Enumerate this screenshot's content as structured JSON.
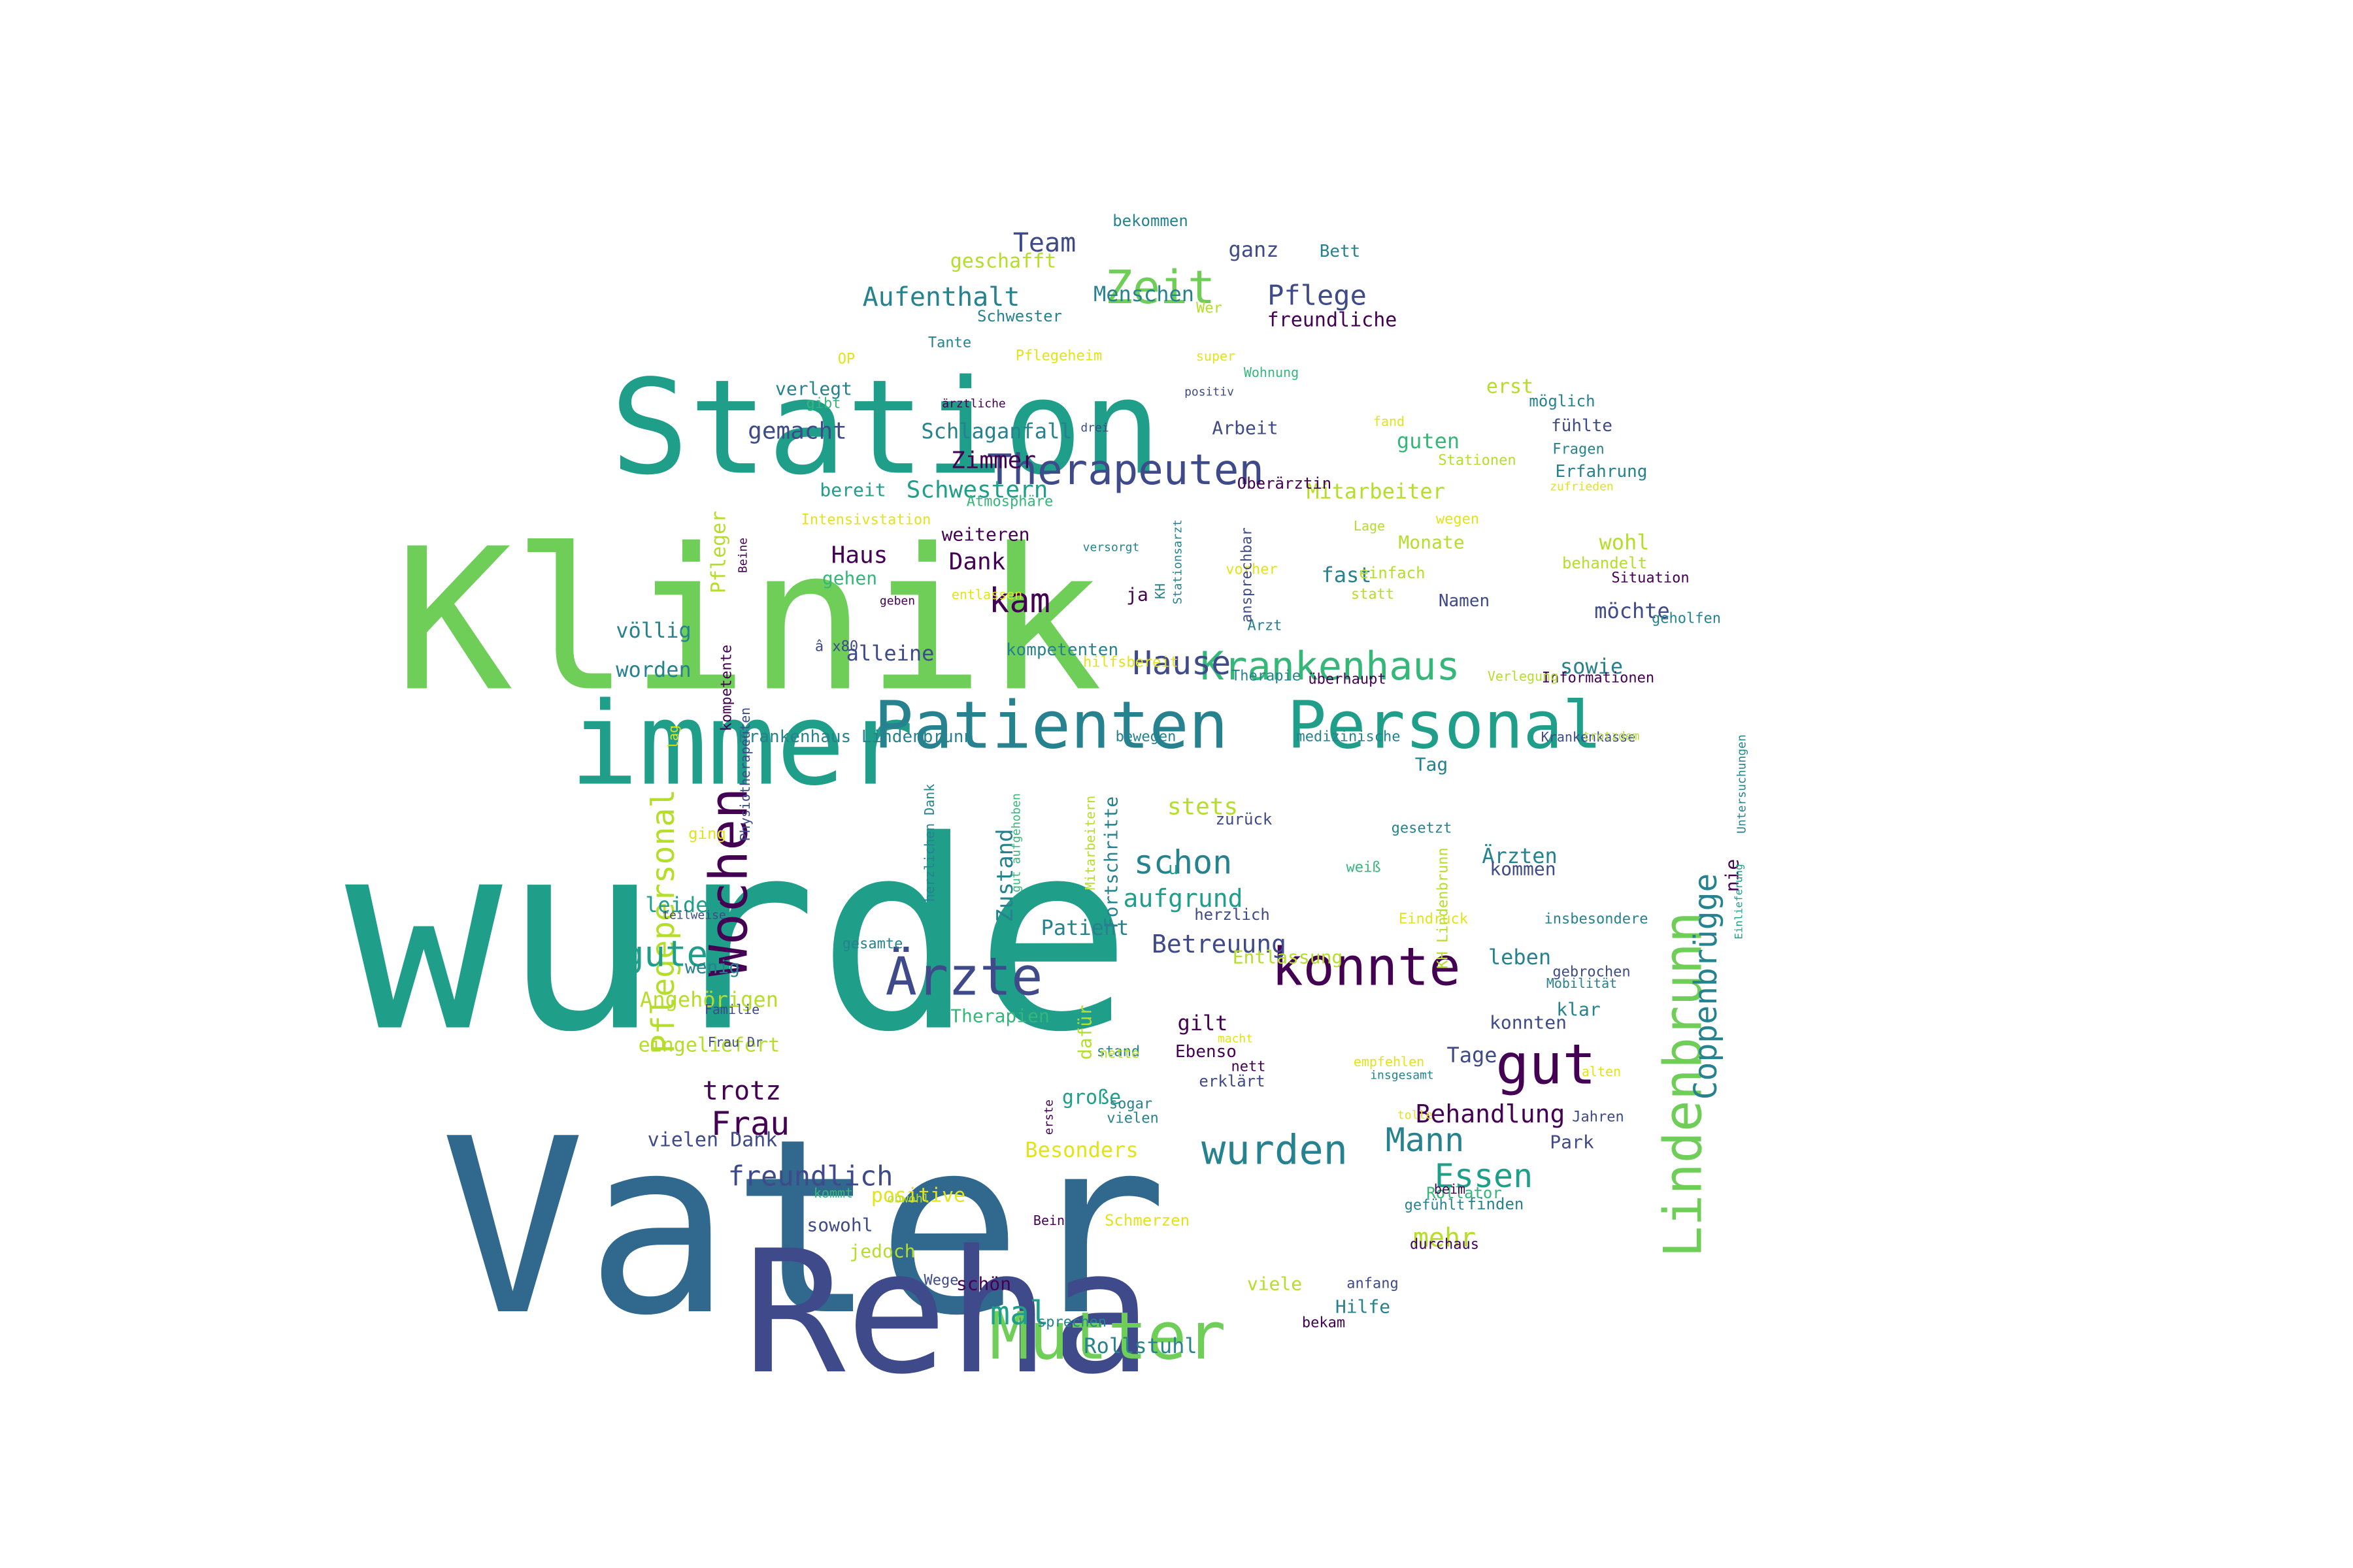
{
  "palette": {
    "dark_purple": "#440154",
    "indigo": "#3e4a89",
    "blue": "#31688e",
    "teal": "#26828e",
    "sea": "#1f9e89",
    "green": "#35b779",
    "lime": "#6ece58",
    "yellow_green": "#b5de2b",
    "yellow": "#e2e418"
  },
  "words": [
    {
      "text": "wurde",
      "size": 1,
      "color": "sea"
    },
    {
      "text": "Vater",
      "size": 0.9,
      "color": "blue"
    },
    {
      "text": "Klinik",
      "size": 0.76,
      "color": "lime"
    },
    {
      "text": "Reha",
      "size": 0.66,
      "color": "indigo"
    },
    {
      "text": "Station",
      "size": 0.5,
      "color": "sea"
    },
    {
      "text": "immer",
      "size": 0.44,
      "color": "sea"
    },
    {
      "text": "Patienten",
      "size": 0.3,
      "color": "teal"
    },
    {
      "text": "Personal",
      "size": 0.3,
      "color": "sea"
    },
    {
      "text": "Mutter",
      "size": 0.26,
      "color": "lime"
    },
    {
      "text": "Ärzte",
      "size": 0.24,
      "color": "indigo"
    },
    {
      "text": "gut",
      "size": 0.24,
      "color": "dark_purple"
    },
    {
      "text": "Lindenbrunn",
      "size": 0.22,
      "color": "lime"
    },
    {
      "text": "Zeit",
      "size": 0.2,
      "color": "lime"
    },
    {
      "text": "konnte",
      "size": 0.2,
      "color": "dark_purple"
    },
    {
      "text": "Wochen",
      "size": 0.2,
      "color": "dark_purple"
    },
    {
      "text": "Therapeuten",
      "size": 0.16,
      "color": "indigo"
    },
    {
      "text": "Krankenhaus",
      "size": 0.16,
      "color": "green"
    },
    {
      "text": "Pflegepersonal",
      "size": 0.14,
      "color": "yellow_green"
    },
    {
      "text": "Coppenbrügge",
      "size": 0.14,
      "color": "teal"
    },
    {
      "text": "wurden",
      "size": 0.14,
      "color": "teal"
    },
    {
      "text": "Hause",
      "size": 0.12,
      "color": "indigo"
    },
    {
      "text": "schon",
      "size": 0.12,
      "color": "teal"
    },
    {
      "text": "kam",
      "size": 0.12,
      "color": "dark_purple"
    },
    {
      "text": "gute",
      "size": 0.12,
      "color": "sea"
    },
    {
      "text": "Mann",
      "size": 0.12,
      "color": "teal"
    },
    {
      "text": "Essen",
      "size": 0.12,
      "color": "sea"
    },
    {
      "text": "Frau",
      "size": 0.12,
      "color": "dark_purple"
    },
    {
      "text": "mal",
      "size": 0.12,
      "color": "sea"
    },
    {
      "text": "Aufenthalt",
      "size": 0.1,
      "color": "teal"
    },
    {
      "text": "Pflege",
      "size": 0.1,
      "color": "indigo"
    },
    {
      "text": "Team",
      "size": 0.1,
      "color": "indigo"
    },
    {
      "text": "freundlich",
      "size": 0.1,
      "color": "indigo"
    },
    {
      "text": "trotz",
      "size": 0.1,
      "color": "dark_purple"
    },
    {
      "text": "Behandlung",
      "size": 0.1,
      "color": "dark_purple"
    },
    {
      "text": "Betreuung",
      "size": 0.1,
      "color": "indigo"
    },
    {
      "text": "aufgrund",
      "size": 0.1,
      "color": "sea"
    },
    {
      "text": "mehr",
      "size": 0.1,
      "color": "yellow_green"
    },
    {
      "text": "Schwestern",
      "size": 0.09,
      "color": "sea"
    },
    {
      "text": "gemacht",
      "size": 0.09,
      "color": "indigo"
    },
    {
      "text": "Zimmer",
      "size": 0.09,
      "color": "dark_purple"
    },
    {
      "text": "Dank",
      "size": 0.09,
      "color": "dark_purple"
    },
    {
      "text": "Haus",
      "size": 0.09,
      "color": "dark_purple"
    },
    {
      "text": "Zustand",
      "size": 0.09,
      "color": "teal"
    },
    {
      "text": "stets",
      "size": 0.09,
      "color": "yellow_green"
    },
    {
      "text": "Schlaganfall",
      "size": 0.08,
      "color": "teal"
    },
    {
      "text": "Menschen",
      "size": 0.08,
      "color": "teal"
    },
    {
      "text": "ganz",
      "size": 0.08,
      "color": "indigo"
    },
    {
      "text": "geschafft",
      "size": 0.08,
      "color": "yellow_green"
    },
    {
      "text": "Arbeit",
      "size": 0.07,
      "color": "indigo"
    },
    {
      "text": "freundliche",
      "size": 0.07,
      "color": "dark_purple"
    },
    {
      "text": "Mitarbeiter",
      "size": 0.07,
      "color": "yellow_green"
    },
    {
      "text": "guten",
      "size": 0.08,
      "color": "green"
    },
    {
      "text": "wohl",
      "size": 0.08,
      "color": "yellow_green"
    },
    {
      "text": "fast",
      "size": 0.08,
      "color": "teal"
    },
    {
      "text": "möchte",
      "size": 0.08,
      "color": "indigo"
    },
    {
      "text": "völlig",
      "size": 0.08,
      "color": "teal"
    },
    {
      "text": "alleine",
      "size": 0.08,
      "color": "indigo"
    },
    {
      "text": "worden",
      "size": 0.08,
      "color": "teal"
    },
    {
      "text": "sowie",
      "size": 0.08,
      "color": "teal"
    },
    {
      "text": "Pfleger",
      "size": 0.07,
      "color": "yellow_green"
    },
    {
      "text": "leider",
      "size": 0.07,
      "color": "sea"
    },
    {
      "text": "Angehörigen",
      "size": 0.07,
      "color": "yellow_green"
    },
    {
      "text": "eingeliefert",
      "size": 0.07,
      "color": "yellow_green"
    },
    {
      "text": "vielen Dank",
      "size": 0.07,
      "color": "indigo"
    },
    {
      "text": "Patient",
      "size": 0.07,
      "color": "teal"
    },
    {
      "text": "leben",
      "size": 0.07,
      "color": "teal"
    },
    {
      "text": "Ärzten",
      "size": 0.07,
      "color": "teal"
    },
    {
      "text": "Tage",
      "size": 0.07,
      "color": "indigo"
    },
    {
      "text": "gilt",
      "size": 0.07,
      "color": "dark_purple"
    },
    {
      "text": "große",
      "size": 0.07,
      "color": "sea"
    },
    {
      "text": "Besonders",
      "size": 0.07,
      "color": "yellow"
    },
    {
      "text": "Rollstuhl",
      "size": 0.07,
      "color": "teal"
    },
    {
      "text": "erst",
      "size": 0.07,
      "color": "yellow_green"
    },
    {
      "text": "weiteren",
      "size": 0.06,
      "color": "dark_purple"
    },
    {
      "text": "gehen",
      "size": 0.06,
      "color": "green"
    },
    {
      "text": "bereit",
      "size": 0.06,
      "color": "sea"
    },
    {
      "text": "verlegt",
      "size": 0.06,
      "color": "teal"
    },
    {
      "text": "Monate",
      "size": 0.06,
      "color": "yellow_green"
    },
    {
      "text": "kommen",
      "size": 0.06,
      "color": "indigo"
    },
    {
      "text": "Tag",
      "size": 0.06,
      "color": "teal"
    },
    {
      "text": "Entlassung",
      "size": 0.06,
      "color": "yellow_green"
    },
    {
      "text": "konnten",
      "size": 0.06,
      "color": "indigo"
    },
    {
      "text": "Hilfe",
      "size": 0.06,
      "color": "teal"
    },
    {
      "text": "viele",
      "size": 0.06,
      "color": "yellow_green"
    },
    {
      "text": "schön",
      "size": 0.06,
      "color": "dark_purple"
    },
    {
      "text": "sowohl",
      "size": 0.06,
      "color": "indigo"
    },
    {
      "text": "positive",
      "size": 0.06,
      "color": "yellow"
    },
    {
      "text": "jedoch",
      "size": 0.06,
      "color": "yellow_green"
    },
    {
      "text": "wenig",
      "size": 0.06,
      "color": "teal"
    },
    {
      "text": "Park",
      "size": 0.06,
      "color": "indigo"
    },
    {
      "text": "klar",
      "size": 0.06,
      "color": "teal"
    },
    {
      "text": "nie",
      "size": 0.06,
      "color": "dark_purple"
    },
    {
      "text": "Fortschritte",
      "size": 0.06,
      "color": "teal"
    },
    {
      "text": "Therapien",
      "size": 0.06,
      "color": "green"
    },
    {
      "text": "dafür",
      "size": 0.06,
      "color": "yellow_green"
    },
    {
      "text": "Bett",
      "size": 0.055,
      "color": "teal"
    },
    {
      "text": "Krankenhaus Lindenbrunn",
      "size": 0.055,
      "color": "teal"
    },
    {
      "text": "Erfahrung",
      "size": 0.055,
      "color": "teal"
    },
    {
      "text": "fühlte",
      "size": 0.055,
      "color": "indigo"
    },
    {
      "text": "möglich",
      "size": 0.05,
      "color": "teal"
    },
    {
      "text": "bekommen",
      "size": 0.05,
      "color": "teal"
    },
    {
      "text": "Schwester",
      "size": 0.05,
      "color": "teal"
    },
    {
      "text": "Situation",
      "size": 0.05,
      "color": "dark_purple"
    },
    {
      "text": "behandelt",
      "size": 0.05,
      "color": "yellow_green"
    },
    {
      "text": "geholfen",
      "size": 0.05,
      "color": "teal"
    },
    {
      "text": "Informationen",
      "size": 0.05,
      "color": "dark_purple"
    },
    {
      "text": "einfach",
      "size": 0.05,
      "color": "yellow_green"
    },
    {
      "text": "statt",
      "size": 0.05,
      "color": "yellow_green"
    },
    {
      "text": "ja",
      "size": 0.05,
      "color": "dark_purple"
    },
    {
      "text": "u",
      "size": 0.05,
      "color": "sea"
    },
    {
      "text": "herzlich",
      "size": 0.05,
      "color": "indigo"
    },
    {
      "text": "zurück",
      "size": 0.05,
      "color": "indigo"
    },
    {
      "text": "Ebenso",
      "size": 0.05,
      "color": "dark_purple"
    },
    {
      "text": "nett",
      "size": 0.05,
      "color": "dark_purple"
    },
    {
      "text": "erklärt",
      "size": 0.05,
      "color": "indigo"
    },
    {
      "text": "Wege",
      "size": 0.05,
      "color": "indigo"
    },
    {
      "text": "sprechen",
      "size": 0.05,
      "color": "teal"
    },
    {
      "text": "bekam",
      "size": 0.05,
      "color": "dark_purple"
    },
    {
      "text": "Rollator",
      "size": 0.05,
      "color": "green"
    },
    {
      "text": "durchaus",
      "size": 0.05,
      "color": "dark_purple"
    },
    {
      "text": "finden",
      "size": 0.05,
      "color": "teal"
    },
    {
      "text": "gefühlt",
      "size": 0.045,
      "color": "teal"
    },
    {
      "text": "beim",
      "size": 0.045,
      "color": "dark_purple"
    },
    {
      "text": "Schmerzen",
      "size": 0.05,
      "color": "yellow"
    },
    {
      "text": "Bein",
      "size": 0.045,
      "color": "dark_purple"
    },
    {
      "text": "kommt",
      "size": 0.045,
      "color": "green"
    },
    {
      "text": "obwohl",
      "size": 0.04,
      "color": "yellow_green"
    },
    {
      "text": "Familie",
      "size": 0.045,
      "color": "indigo"
    },
    {
      "text": "Frau Dr",
      "size": 0.045,
      "color": "indigo"
    },
    {
      "text": "gesamte",
      "size": 0.045,
      "color": "teal"
    },
    {
      "text": "Eindruck",
      "size": 0.05,
      "color": "yellow"
    },
    {
      "text": "insbesondere",
      "size": 0.045,
      "color": "teal"
    },
    {
      "text": "gebrochen",
      "size": 0.045,
      "color": "indigo"
    },
    {
      "text": "Mobilität",
      "size": 0.045,
      "color": "teal"
    },
    {
      "text": "alten",
      "size": 0.045,
      "color": "yellow"
    },
    {
      "text": "Jahren",
      "size": 0.045,
      "color": "indigo"
    },
    {
      "text": "empfehlen",
      "size": 0.045,
      "color": "yellow"
    },
    {
      "text": "insgesamt",
      "size": 0.045,
      "color": "teal"
    },
    {
      "text": "tolle",
      "size": 0.04,
      "color": "yellow"
    },
    {
      "text": "stand",
      "size": 0.04,
      "color": "teal"
    },
    {
      "text": "nette",
      "size": 0.045,
      "color": "yellow_green"
    },
    {
      "text": "macht",
      "size": 0.045,
      "color": "yellow"
    },
    {
      "text": "sogar",
      "size": 0.04,
      "color": "teal"
    },
    {
      "text": "vielen",
      "size": 0.045,
      "color": "teal"
    },
    {
      "text": "erste",
      "size": 0.045,
      "color": "dark_purple"
    },
    {
      "text": "anfang",
      "size": 0.04,
      "color": "indigo"
    },
    {
      "text": "Pflegeheim",
      "size": 0.045,
      "color": "yellow"
    },
    {
      "text": "Tante",
      "size": 0.045,
      "color": "teal"
    },
    {
      "text": "OP",
      "size": 0.045,
      "color": "yellow"
    },
    {
      "text": "gibt",
      "size": 0.045,
      "color": "green"
    },
    {
      "text": "ärztliche",
      "size": 0.045,
      "color": "dark_purple"
    },
    {
      "text": "Wer",
      "size": 0.04,
      "color": "yellow_green"
    },
    {
      "text": "super",
      "size": 0.045,
      "color": "yellow"
    },
    {
      "text": "Wohnung",
      "size": 0.045,
      "color": "green"
    },
    {
      "text": "positiv",
      "size": 0.045,
      "color": "indigo"
    },
    {
      "text": "drei",
      "size": 0.04,
      "color": "indigo"
    },
    {
      "text": "fand",
      "size": 0.04,
      "color": "yellow"
    },
    {
      "text": "Stationen",
      "size": 0.045,
      "color": "yellow_green"
    },
    {
      "text": "Fragen",
      "size": 0.045,
      "color": "teal"
    },
    {
      "text": "zufrieden",
      "size": 0.045,
      "color": "yellow"
    },
    {
      "text": "Oberärztin",
      "size": 0.04,
      "color": "dark_purple"
    },
    {
      "text": "Intensivstation",
      "size": 0.05,
      "color": "yellow"
    },
    {
      "text": "Atmosphäre",
      "size": 0.045,
      "color": "green"
    },
    {
      "text": "versorgt",
      "size": 0.045,
      "color": "teal"
    },
    {
      "text": "geben",
      "size": 0.04,
      "color": "dark_purple"
    },
    {
      "text": "entlassen",
      "size": 0.04,
      "color": "yellow"
    },
    {
      "text": "Lage",
      "size": 0.045,
      "color": "yellow_green"
    },
    {
      "text": "wegen",
      "size": 0.045,
      "color": "yellow"
    },
    {
      "text": "vorher",
      "size": 0.045,
      "color": "yellow"
    },
    {
      "text": "Arzt",
      "size": 0.045,
      "color": "teal"
    },
    {
      "text": "Namen",
      "size": 0.045,
      "color": "indigo"
    },
    {
      "text": "â x80",
      "size": 0.05,
      "color": "indigo"
    },
    {
      "text": "kompetenten",
      "size": 0.045,
      "color": "teal"
    },
    {
      "text": "hilfsbereit",
      "size": 0.05,
      "color": "yellow"
    },
    {
      "text": "Therapie",
      "size": 0.045,
      "color": "teal"
    },
    {
      "text": "überhaupt",
      "size": 0.045,
      "color": "dark_purple"
    },
    {
      "text": "Verlegung",
      "size": 0.045,
      "color": "yellow_green"
    },
    {
      "text": "bewegen",
      "size": 0.04,
      "color": "teal"
    },
    {
      "text": "medizinische",
      "size": 0.045,
      "color": "teal"
    },
    {
      "text": "Krankenkasse",
      "size": 0.045,
      "color": "indigo"
    },
    {
      "text": "trotzdem",
      "size": 0.045,
      "color": "yellow_green"
    },
    {
      "text": "gesetzt",
      "size": 0.04,
      "color": "teal"
    },
    {
      "text": "weiß",
      "size": 0.045,
      "color": "green"
    },
    {
      "text": "ging",
      "size": 0.045,
      "color": "yellow"
    },
    {
      "text": "teilweise",
      "size": 0.045,
      "color": "indigo"
    },
    {
      "text": "kompetente",
      "size": 0.04,
      "color": "dark_purple"
    },
    {
      "text": "lag",
      "size": 0.045,
      "color": "yellow"
    },
    {
      "text": "Physiotherapeuten",
      "size": 0.04,
      "color": "indigo"
    },
    {
      "text": "Beine",
      "size": 0.04,
      "color": "dark_purple"
    },
    {
      "text": "herzlichen Dank",
      "size": 0.04,
      "color": "teal"
    },
    {
      "text": "gut aufgehoben",
      "size": 0.04,
      "color": "green"
    },
    {
      "text": "Mitarbeitern",
      "size": 0.04,
      "color": "yellow_green"
    },
    {
      "text": "KH",
      "size": 0.04,
      "color": "teal"
    },
    {
      "text": "Stationsarzt",
      "size": 0.04,
      "color": "teal"
    },
    {
      "text": "ansprechbar",
      "size": 0.045,
      "color": "indigo"
    },
    {
      "text": "KH Lindenbrunn",
      "size": 0.04,
      "color": "yellow_green"
    },
    {
      "text": "Untersuchungen",
      "size": 0.045,
      "color": "teal"
    },
    {
      "text": "Einlieferung",
      "size": 0.045,
      "color": "sea"
    },
    {
      "text": "Angehöriger",
      "size": 0.04,
      "color": "green"
    },
    {
      "text": "richtig",
      "size": 0.04,
      "color": "sea"
    }
  ]
}
